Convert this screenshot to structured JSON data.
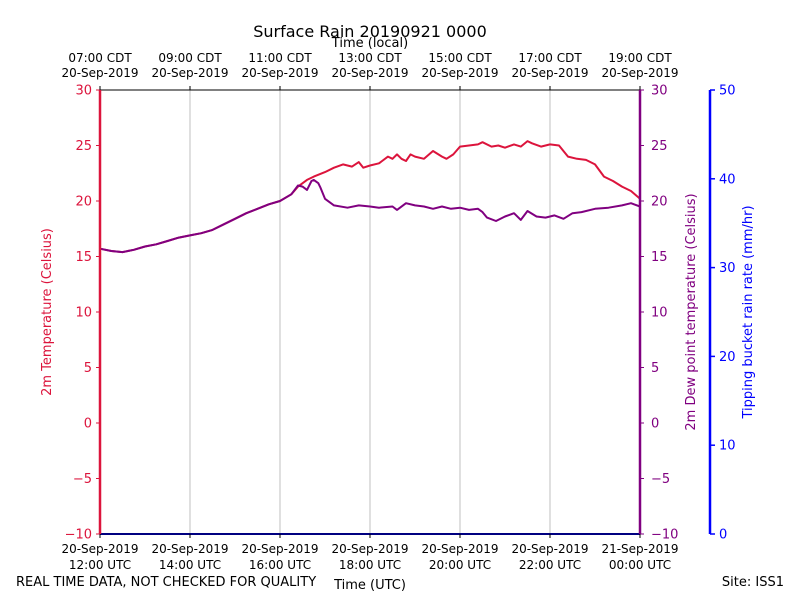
{
  "footer": {
    "quality_note": "REAL TIME DATA, NOT CHECKED FOR QUALITY",
    "site": "Site: ISS1"
  },
  "chart_data": {
    "type": "line",
    "title": "Surface Rain 20190921 0000",
    "xlabel_bottom": "Time (UTC)",
    "xlabel_top": "Time (local)",
    "ylabel_left": "2m Temperature (Celsius)",
    "ylabel_right": "2m Dew point temperature (Celsius)",
    "ylabel_far_right": "Tipping bucket rain rate (mm/hr)",
    "xlim_utc_hours": [
      12,
      24
    ],
    "ylim": [
      -10,
      30
    ],
    "ylim_rain": [
      0,
      50
    ],
    "grid": "vertical",
    "bottom_ticks": [
      {
        "date": "20-Sep-2019",
        "time": "12:00 UTC",
        "hour": 12
      },
      {
        "date": "20-Sep-2019",
        "time": "14:00 UTC",
        "hour": 14
      },
      {
        "date": "20-Sep-2019",
        "time": "16:00 UTC",
        "hour": 16
      },
      {
        "date": "20-Sep-2019",
        "time": "18:00 UTC",
        "hour": 18
      },
      {
        "date": "20-Sep-2019",
        "time": "20:00 UTC",
        "hour": 20
      },
      {
        "date": "20-Sep-2019",
        "time": "22:00 UTC",
        "hour": 22
      },
      {
        "date": "21-Sep-2019",
        "time": "00:00 UTC",
        "hour": 24
      }
    ],
    "top_ticks": [
      {
        "time": "07:00 CDT",
        "date": "20-Sep-2019",
        "hour": 12
      },
      {
        "time": "09:00 CDT",
        "date": "20-Sep-2019",
        "hour": 14
      },
      {
        "time": "11:00 CDT",
        "date": "20-Sep-2019",
        "hour": 16
      },
      {
        "time": "13:00 CDT",
        "date": "20-Sep-2019",
        "hour": 18
      },
      {
        "time": "15:00 CDT",
        "date": "20-Sep-2019",
        "hour": 20
      },
      {
        "time": "17:00 CDT",
        "date": "20-Sep-2019",
        "hour": 22
      },
      {
        "time": "19:00 CDT",
        "date": "20-Sep-2019",
        "hour": 24
      }
    ],
    "left_ticks": [
      30,
      25,
      20,
      15,
      10,
      5,
      0,
      -5,
      -10
    ],
    "right_ticks": [
      30,
      25,
      20,
      15,
      10,
      5,
      0,
      -5,
      -10
    ],
    "rain_ticks": [
      50,
      40,
      30,
      20,
      10,
      0
    ],
    "colors": {
      "temperature": "#dc143c",
      "dewpoint": "#800080",
      "rain": "#0000ff",
      "grid": "#b0b0b0"
    },
    "series": [
      {
        "key": "temperature",
        "x": [
          12.0,
          12.25,
          12.5,
          12.75,
          13.0,
          13.25,
          13.5,
          13.75,
          14.0,
          14.25,
          14.5,
          14.75,
          15.0,
          15.25,
          15.5,
          15.75,
          16.0,
          16.25,
          16.4,
          16.6,
          16.75,
          17.0,
          17.2,
          17.4,
          17.6,
          17.75,
          17.85,
          18.0,
          18.2,
          18.4,
          18.5,
          18.6,
          18.7,
          18.8,
          18.9,
          19.0,
          19.2,
          19.4,
          19.6,
          19.7,
          19.85,
          20.0,
          20.2,
          20.4,
          20.5,
          20.7,
          20.85,
          21.0,
          21.2,
          21.35,
          21.5,
          21.6,
          21.8,
          22.0,
          22.2,
          22.4,
          22.6,
          22.8,
          23.0,
          23.2,
          23.4,
          23.6,
          23.8,
          24.0
        ],
        "y": [
          15.7,
          15.5,
          15.4,
          15.6,
          15.9,
          16.1,
          16.4,
          16.7,
          16.9,
          17.1,
          17.4,
          17.9,
          18.4,
          18.9,
          19.3,
          19.7,
          20.0,
          20.6,
          21.3,
          21.9,
          22.2,
          22.6,
          23.0,
          23.3,
          23.1,
          23.5,
          23.0,
          23.2,
          23.4,
          24.0,
          23.8,
          24.2,
          23.8,
          23.6,
          24.2,
          24.0,
          23.8,
          24.5,
          24.0,
          23.8,
          24.2,
          24.9,
          25.0,
          25.1,
          25.3,
          24.9,
          25.0,
          24.8,
          25.1,
          24.9,
          25.4,
          25.2,
          24.9,
          25.1,
          25.0,
          24.0,
          23.8,
          23.7,
          23.3,
          22.2,
          21.8,
          21.3,
          20.9,
          20.2
        ],
        "name": ""
      },
      {
        "key": "dewpoint",
        "x": [
          12.0,
          12.25,
          12.5,
          12.75,
          13.0,
          13.25,
          13.5,
          13.75,
          14.0,
          14.25,
          14.5,
          14.75,
          15.0,
          15.25,
          15.5,
          15.75,
          16.0,
          16.25,
          16.4,
          16.5,
          16.6,
          16.7,
          16.75,
          16.85,
          16.9,
          17.0,
          17.2,
          17.5,
          17.75,
          18.0,
          18.2,
          18.5,
          18.6,
          18.8,
          19.0,
          19.2,
          19.4,
          19.6,
          19.8,
          20.0,
          20.2,
          20.4,
          20.5,
          20.6,
          20.8,
          21.0,
          21.2,
          21.35,
          21.5,
          21.7,
          21.9,
          22.1,
          22.3,
          22.5,
          22.7,
          23.0,
          23.3,
          23.6,
          23.8,
          24.0
        ],
        "y": [
          15.7,
          15.5,
          15.4,
          15.6,
          15.9,
          16.1,
          16.4,
          16.7,
          16.9,
          17.1,
          17.4,
          17.9,
          18.4,
          18.9,
          19.3,
          19.7,
          20.0,
          20.6,
          21.4,
          21.3,
          21.0,
          21.8,
          21.9,
          21.6,
          21.2,
          20.2,
          19.6,
          19.4,
          19.6,
          19.5,
          19.4,
          19.5,
          19.2,
          19.8,
          19.6,
          19.5,
          19.3,
          19.5,
          19.3,
          19.4,
          19.2,
          19.3,
          19.0,
          18.5,
          18.2,
          18.6,
          18.9,
          18.3,
          19.1,
          18.6,
          18.5,
          18.7,
          18.4,
          18.9,
          19.0,
          19.3,
          19.4,
          19.6,
          19.8,
          19.5
        ],
        "name": ""
      },
      {
        "key": "rain",
        "x": [
          12.0,
          24.0
        ],
        "y": [
          0,
          0
        ],
        "name": ""
      }
    ]
  }
}
